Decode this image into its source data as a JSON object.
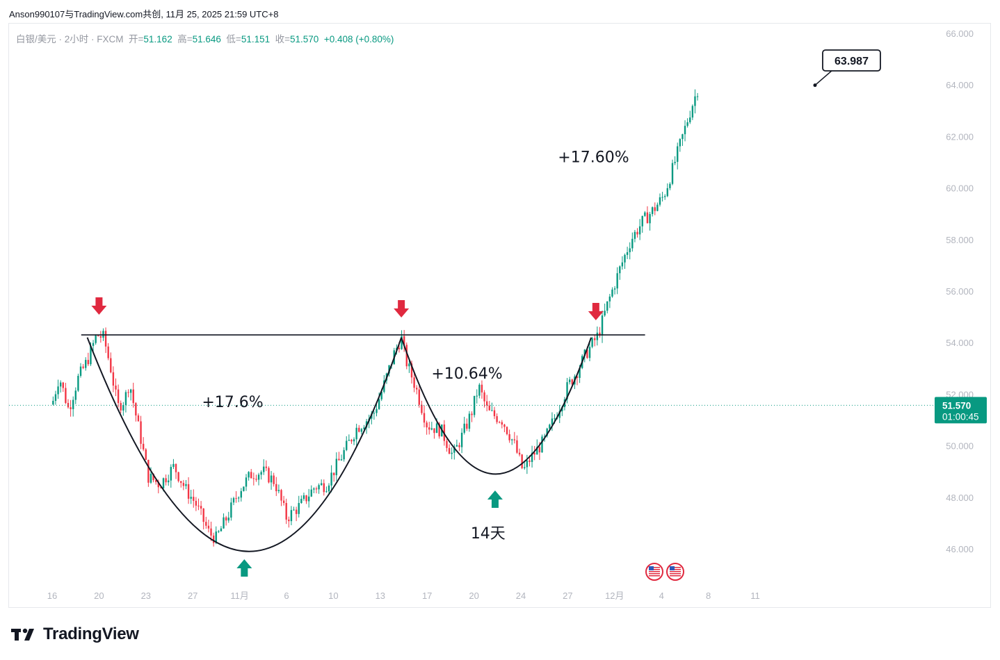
{
  "header": {
    "attribution": "Anson990107与TradingView.com共创, 11月 25, 2025 21:59 UTC+8"
  },
  "legend": {
    "symbol": "白银/美元 · 2小时 · FXCM",
    "open_label": "开=",
    "open": "51.162",
    "high_label": "高=",
    "high": "51.646",
    "low_label": "低=",
    "low": "51.151",
    "close_label": "收=",
    "close": "51.570",
    "change": "+0.408 (+0.80%)"
  },
  "price_tag": {
    "price": "51.570",
    "countdown": "01:00:45"
  },
  "colors": {
    "up": "#089981",
    "down": "#f23645",
    "arrow_down": "#e0293f",
    "arrow_up": "#089981",
    "line": "#131722"
  },
  "brand": {
    "name": "TradingView",
    "icon": "tradingview-logo-icon"
  },
  "chart_data": {
    "type": "candlestick",
    "title": "白银/美元 · 2小时 · FXCM",
    "ylim": [
      44.5,
      67.0
    ],
    "y_ticks": [
      "46.000",
      "48.000",
      "50.000",
      "52.000",
      "54.000",
      "56.000",
      "58.000",
      "60.000",
      "62.000",
      "64.000",
      "66.000"
    ],
    "x_ticks": [
      {
        "label": "16",
        "index": 0
      },
      {
        "label": "20",
        "index": 1
      },
      {
        "label": "23",
        "index": 2
      },
      {
        "label": "27",
        "index": 3
      },
      {
        "label": "11月",
        "index": 4
      },
      {
        "label": "6",
        "index": 5
      },
      {
        "label": "10",
        "index": 6
      },
      {
        "label": "13",
        "index": 7
      },
      {
        "label": "17",
        "index": 8
      },
      {
        "label": "20",
        "index": 9
      },
      {
        "label": "24",
        "index": 10
      },
      {
        "label": "27",
        "index": 11
      },
      {
        "label": "12月",
        "index": 12
      },
      {
        "label": "4",
        "index": 13
      },
      {
        "label": "8",
        "index": 14
      },
      {
        "label": "11",
        "index": 15
      }
    ],
    "path_points": [
      [
        0,
        51.6
      ],
      [
        0.15,
        52.7
      ],
      [
        0.35,
        51.4
      ],
      [
        0.55,
        52.6
      ],
      [
        0.75,
        53.3
      ],
      [
        0.95,
        54.3
      ],
      [
        1.1,
        54.2
      ],
      [
        1.25,
        53.0
      ],
      [
        1.4,
        51.5
      ],
      [
        1.55,
        51.8
      ],
      [
        1.65,
        52.5
      ],
      [
        1.75,
        51.5
      ],
      [
        1.9,
        50.2
      ],
      [
        2.05,
        48.8
      ],
      [
        2.3,
        48.5
      ],
      [
        2.6,
        49.2
      ],
      [
        2.85,
        48.3
      ],
      [
        3.05,
        47.8
      ],
      [
        3.35,
        46.6
      ],
      [
        3.5,
        46.4
      ],
      [
        3.75,
        47.3
      ],
      [
        4.0,
        48.3
      ],
      [
        4.25,
        48.9
      ],
      [
        4.5,
        49.0
      ],
      [
        4.75,
        48.6
      ],
      [
        5.0,
        47.2
      ],
      [
        5.3,
        47.7
      ],
      [
        5.6,
        48.4
      ],
      [
        5.85,
        48.5
      ],
      [
        6.15,
        49.5
      ],
      [
        6.5,
        50.7
      ],
      [
        6.85,
        51.2
      ],
      [
        7.05,
        52.2
      ],
      [
        7.3,
        53.6
      ],
      [
        7.45,
        54.2
      ],
      [
        7.55,
        53.3
      ],
      [
        7.75,
        52.3
      ],
      [
        8.0,
        50.8
      ],
      [
        8.3,
        50.6
      ],
      [
        8.55,
        49.6
      ],
      [
        8.75,
        50.4
      ],
      [
        8.95,
        51.3
      ],
      [
        9.1,
        52.3
      ],
      [
        9.3,
        51.3
      ],
      [
        9.6,
        51.0
      ],
      [
        9.85,
        50.1
      ],
      [
        10.05,
        49.0
      ],
      [
        10.2,
        49.5
      ],
      [
        10.5,
        50.2
      ],
      [
        10.75,
        51.2
      ],
      [
        11.0,
        52.3
      ],
      [
        11.2,
        52.9
      ],
      [
        11.4,
        53.6
      ],
      [
        11.65,
        54.3
      ],
      [
        11.85,
        55.5
      ],
      [
        12.1,
        56.8
      ],
      [
        12.35,
        58.0
      ],
      [
        12.6,
        58.7
      ],
      [
        12.85,
        59.2
      ],
      [
        13.05,
        59.7
      ],
      [
        13.25,
        60.8
      ],
      [
        13.45,
        62.0
      ],
      [
        13.65,
        63.2
      ],
      [
        13.8,
        63.99
      ]
    ],
    "resistance": 54.3,
    "last_price": 51.57,
    "annotations": [
      {
        "text": "+17.6%",
        "index": 3.85,
        "price": 51.5
      },
      {
        "text": "+10.64%",
        "index": 8.85,
        "price": 52.6
      },
      {
        "text": "+17.60%",
        "index": 11.55,
        "price": 61.0
      },
      {
        "text": "14天",
        "index": 9.3,
        "price": 46.4
      }
    ],
    "callout": {
      "text": "63.987",
      "price": 63.987
    },
    "down_arrows": [
      1.0,
      7.45,
      11.6
    ],
    "up_arrows": [
      4.1,
      9.45
    ]
  }
}
